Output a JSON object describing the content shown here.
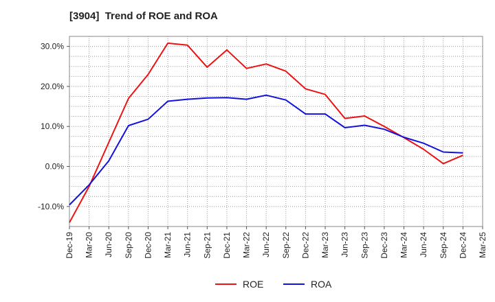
{
  "chart_data": {
    "type": "line",
    "title": "[3904]  Trend of ROE and ROA",
    "categories": [
      "Dec-19",
      "Mar-20",
      "Jun-20",
      "Sep-20",
      "Dec-20",
      "Mar-21",
      "Jun-21",
      "Sep-21",
      "Dec-21",
      "Mar-22",
      "Jun-22",
      "Sep-22",
      "Dec-22",
      "Mar-23",
      "Jun-23",
      "Sep-23",
      "Dec-23",
      "Mar-24",
      "Jun-24",
      "Sep-24",
      "Dec-24",
      "Mar-25"
    ],
    "y_ticks": [
      "30.0%",
      "20.0%",
      "10.0%",
      "0.0%",
      "-10.0%"
    ],
    "y_tick_values": [
      30,
      20,
      10,
      0,
      -10
    ],
    "ylim": [
      -15,
      32.5
    ],
    "grid": true,
    "legend_position": "bottom",
    "series": [
      {
        "name": "ROE",
        "color": "#ee1111",
        "values": [
          -14.0,
          -5.0,
          6.0,
          17.0,
          23.0,
          30.8,
          30.3,
          24.8,
          29.1,
          24.5,
          25.6,
          23.8,
          19.4,
          18.0,
          12.0,
          12.6,
          10.0,
          7.2,
          4.3,
          0.7,
          2.8,
          null
        ]
      },
      {
        "name": "ROA",
        "color": "#1111dd",
        "values": [
          -9.6,
          -4.6,
          1.4,
          10.2,
          11.8,
          16.3,
          16.8,
          17.1,
          17.2,
          16.8,
          17.8,
          16.6,
          13.1,
          13.1,
          9.7,
          10.3,
          9.3,
          7.3,
          5.8,
          3.6,
          3.4,
          null
        ]
      }
    ]
  }
}
